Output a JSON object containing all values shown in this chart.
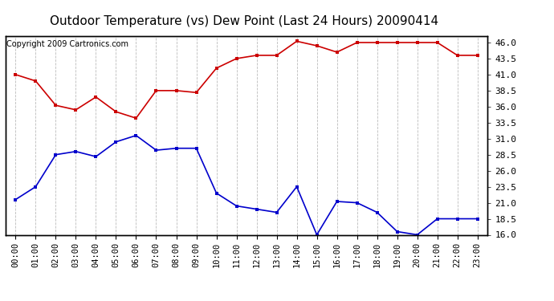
{
  "title": "Outdoor Temperature (vs) Dew Point (Last 24 Hours) 20090414",
  "copyright": "Copyright 2009 Cartronics.com",
  "x_labels": [
    "00:00",
    "01:00",
    "02:00",
    "03:00",
    "04:00",
    "05:00",
    "06:00",
    "07:00",
    "08:00",
    "09:00",
    "10:00",
    "11:00",
    "12:00",
    "13:00",
    "14:00",
    "15:00",
    "16:00",
    "17:00",
    "18:00",
    "19:00",
    "20:00",
    "21:00",
    "22:00",
    "23:00"
  ],
  "temp_data": [
    41.0,
    40.0,
    36.2,
    35.5,
    37.5,
    35.2,
    34.2,
    38.5,
    38.5,
    38.2,
    42.0,
    43.5,
    44.0,
    44.0,
    46.2,
    45.5,
    44.5,
    46.0,
    46.0,
    46.0,
    46.0,
    46.0,
    44.0,
    44.0
  ],
  "dew_data": [
    21.5,
    23.5,
    28.5,
    29.0,
    28.2,
    30.5,
    31.5,
    29.2,
    29.5,
    29.5,
    22.5,
    20.5,
    20.0,
    19.5,
    23.5,
    16.0,
    21.2,
    21.0,
    19.5,
    16.5,
    16.0,
    18.5,
    18.5,
    18.5
  ],
  "ylim": [
    16.0,
    47.0
  ],
  "yticks": [
    16.0,
    18.5,
    21.0,
    23.5,
    26.0,
    28.5,
    31.0,
    33.5,
    36.0,
    38.5,
    41.0,
    43.5,
    46.0
  ],
  "temp_color": "#cc0000",
  "dew_color": "#0000cc",
  "bg_color": "#ffffff",
  "grid_color": "#bbbbbb",
  "title_fontsize": 11,
  "copyright_fontsize": 7,
  "tick_fontsize": 7.5,
  "ytick_fontsize": 8
}
